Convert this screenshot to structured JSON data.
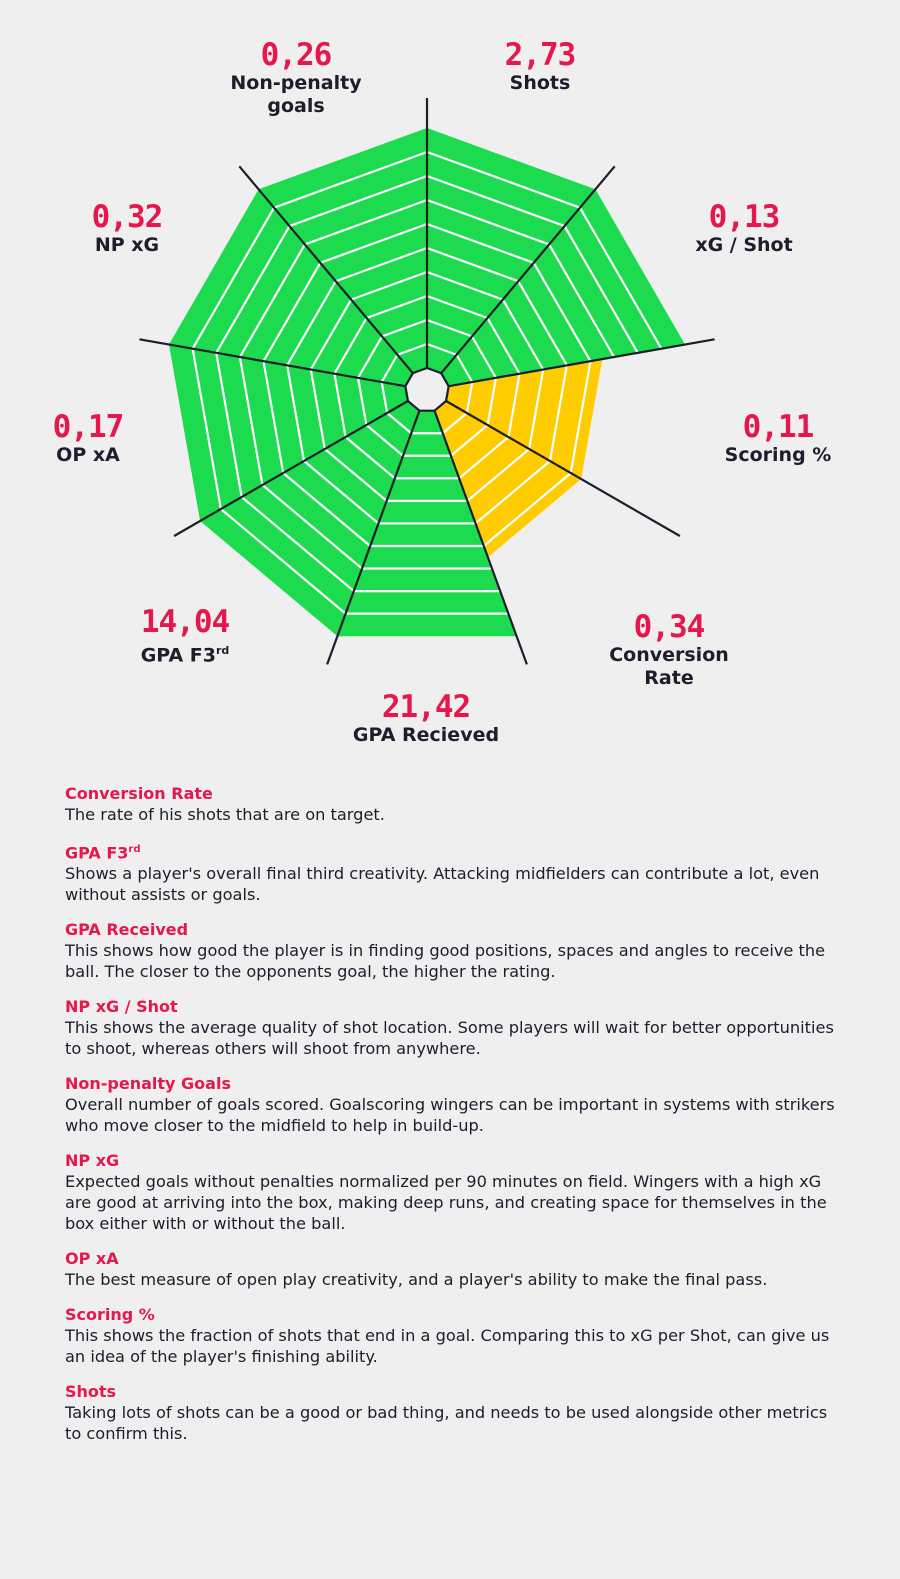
{
  "chart_data": {
    "type": "radar",
    "max_rating": 10,
    "colors": {
      "high": "#1ddb4f",
      "mid": "#ffcc00",
      "grid_line": "#ffffff",
      "axis_line": "#1d1d2c",
      "value_text": "#e5174d"
    },
    "axes": [
      {
        "name": "Shots",
        "sup": "",
        "value": "2,73",
        "rating": 10,
        "color": "high"
      },
      {
        "name": "xG / Shot",
        "sup": "",
        "value": "0,13",
        "rating": 10,
        "color": "high"
      },
      {
        "name": "Scoring %",
        "sup": "",
        "value": "0,11",
        "rating": 6.5,
        "color": "mid"
      },
      {
        "name": "Conversion Rate",
        "sup": "",
        "value": "0,34",
        "rating": 6.5,
        "color": "mid"
      },
      {
        "name": "GPA Recieved",
        "sup": "",
        "value": "21,42",
        "rating": 10,
        "color": "high"
      },
      {
        "name": "GPA F3",
        "sup": "rd",
        "value": "14,04",
        "rating": 10,
        "color": "high"
      },
      {
        "name": "OP xA",
        "sup": "",
        "value": "0,17",
        "rating": 10,
        "color": "high"
      },
      {
        "name": "NP xG",
        "sup": "",
        "value": "0,32",
        "rating": 10,
        "color": "high"
      },
      {
        "name": "Non-penalty goals",
        "sup": "",
        "value": "0,26",
        "rating": 10,
        "color": "high"
      }
    ]
  },
  "glossary": [
    {
      "term": "Conversion Rate",
      "sup": "",
      "text": "The rate of his shots that are on target."
    },
    {
      "term": "GPA F3",
      "sup": "rd",
      "text": "Shows a player's overall final third creativity. Attacking midfielders can contribute a lot, even without assists or goals."
    },
    {
      "term": "GPA Received",
      "sup": "",
      "text": "This shows how good the player is in finding good positions, spaces and angles to receive the ball. The closer to the opponents goal, the higher the rating."
    },
    {
      "term": "NP xG / Shot",
      "sup": "",
      "text": "This shows the average quality of shot location. Some players will wait for better opportunities to shoot, whereas others will shoot from anywhere."
    },
    {
      "term": "Non-penalty Goals",
      "sup": "",
      "text": "Overall number of goals scored. Goalscoring wingers can be important in systems with strikers who move closer to the midfield to help in build-up."
    },
    {
      "term": "NP xG",
      "sup": "",
      "text": "Expected goals without penalties normalized per 90 minutes on field. Wingers with a high xG are good at arriving into the box, making deep runs, and creating space for themselves in the box either with or without the ball."
    },
    {
      "term": "OP xA",
      "sup": "",
      "text": "The best measure of open play creativity, and a player's ability to make the final pass."
    },
    {
      "term": "Scoring %",
      "sup": "",
      "text": "This shows the fraction of shots that end in a goal. Comparing this to xG per Shot, can give us an idea of the player's finishing ability."
    },
    {
      "term": "Shots",
      "sup": "",
      "text": "Taking lots of shots can be a good or bad thing, and needs to be used alongside other metrics to confirm this."
    }
  ]
}
